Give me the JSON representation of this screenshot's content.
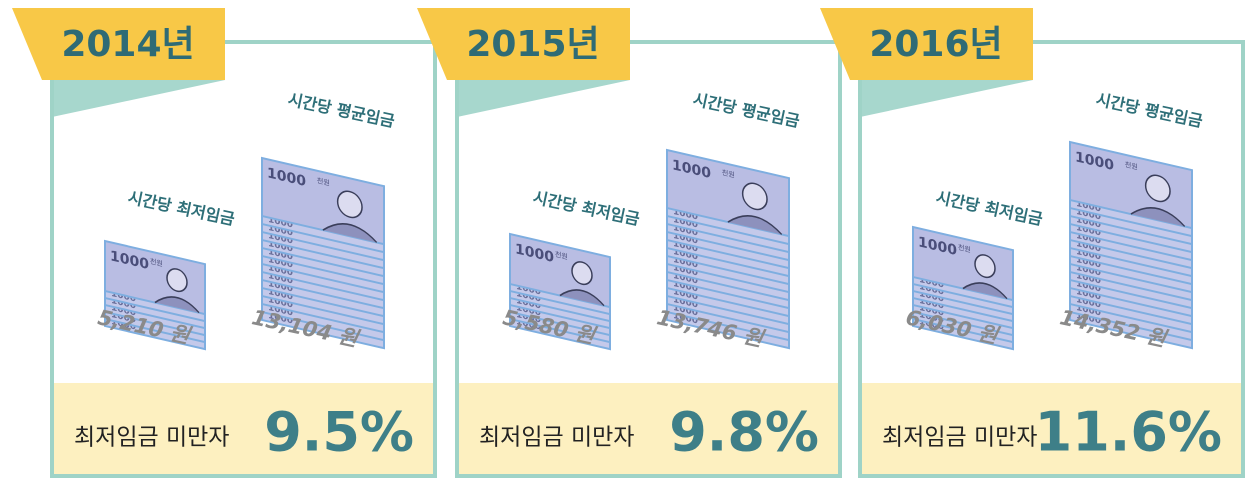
{
  "bill_label": "1000",
  "bill_unit": "천원",
  "panels": [
    {
      "year": "2014년",
      "min_label": "시간당 최저임금",
      "min_value": "5,210 원",
      "avg_label": "시간당 평균임금",
      "avg_value": "13,104 원",
      "footer_label": "최저임금 미만자",
      "footer_value": "9.5%"
    },
    {
      "year": "2015년",
      "min_label": "시간당 최저임금",
      "min_value": "5,580 원",
      "avg_label": "시간당 평균임금",
      "avg_value": "13,746 원",
      "footer_label": "최저임금 미만자",
      "footer_value": "9.8%"
    },
    {
      "year": "2016년",
      "min_label": "시간당 최저임금",
      "min_value": "6,030 원",
      "avg_label": "시간당 평균임금",
      "avg_value": "14,352 원",
      "footer_label": "최저임금 미만자",
      "footer_value": "11.6%"
    }
  ]
}
